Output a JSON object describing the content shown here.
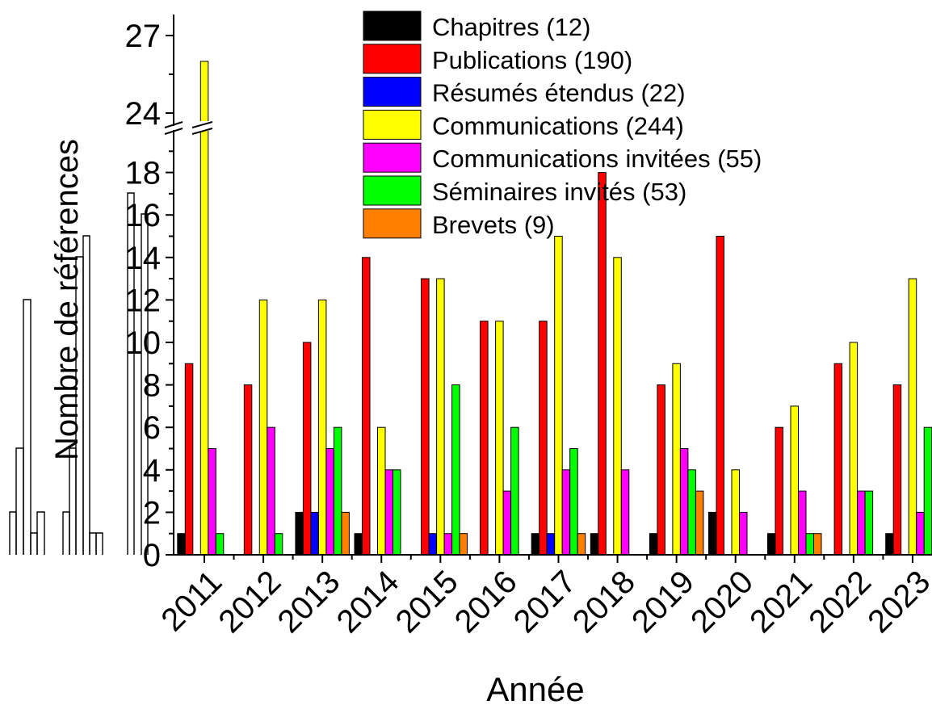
{
  "chart_data": {
    "type": "bar",
    "xlabel": "Année",
    "ylabel": "Nombre de références",
    "categories": [
      "2011",
      "2012",
      "2013",
      "2014",
      "2015",
      "2016",
      "2017",
      "2018",
      "2019",
      "2020",
      "2021",
      "2022",
      "2023"
    ],
    "y_axis": {
      "scale": "broken",
      "lower_range": [
        0,
        19.5
      ],
      "upper_range": [
        23.5,
        28.5
      ],
      "lower_ticks": [
        "0",
        "2",
        "4",
        "6",
        "8",
        "10",
        "12",
        "14",
        "16",
        "18"
      ],
      "upper_ticks": [
        "24",
        "27"
      ]
    },
    "legend_position": "top-right",
    "series": [
      {
        "name": "Chapitres (12)",
        "color": "#000000",
        "values": [
          1,
          0,
          2,
          1,
          0,
          0,
          1,
          1,
          1,
          2,
          1,
          0,
          1
        ]
      },
      {
        "name": "Publications (190)",
        "color": "#ff0000",
        "values": [
          9,
          8,
          10,
          14,
          13,
          11,
          11,
          18,
          8,
          15,
          6,
          9,
          8
        ]
      },
      {
        "name": "Résumés étendus (22)",
        "color": "#0000ff",
        "values": [
          0,
          0,
          2,
          0,
          1,
          0,
          1,
          0,
          0,
          0,
          0,
          0,
          0
        ]
      },
      {
        "name": "Communications (244)",
        "color": "#ffff00",
        "values": [
          26,
          12,
          12,
          6,
          13,
          11,
          15,
          14,
          9,
          4,
          7,
          10,
          13
        ]
      },
      {
        "name": "Communications invitées (55)",
        "color": "#ff00ff",
        "values": [
          5,
          6,
          5,
          4,
          1,
          3,
          4,
          4,
          5,
          2,
          3,
          3,
          2
        ]
      },
      {
        "name": "Séminaires invités (53)",
        "color": "#00ff00",
        "values": [
          1,
          1,
          6,
          4,
          8,
          6,
          5,
          0,
          4,
          0,
          1,
          3,
          6
        ]
      },
      {
        "name": "Brevets (9)",
        "color": "#ff8000",
        "values": [
          0,
          0,
          2,
          0,
          1,
          0,
          1,
          0,
          3,
          0,
          1,
          0,
          0
        ]
      }
    ]
  }
}
